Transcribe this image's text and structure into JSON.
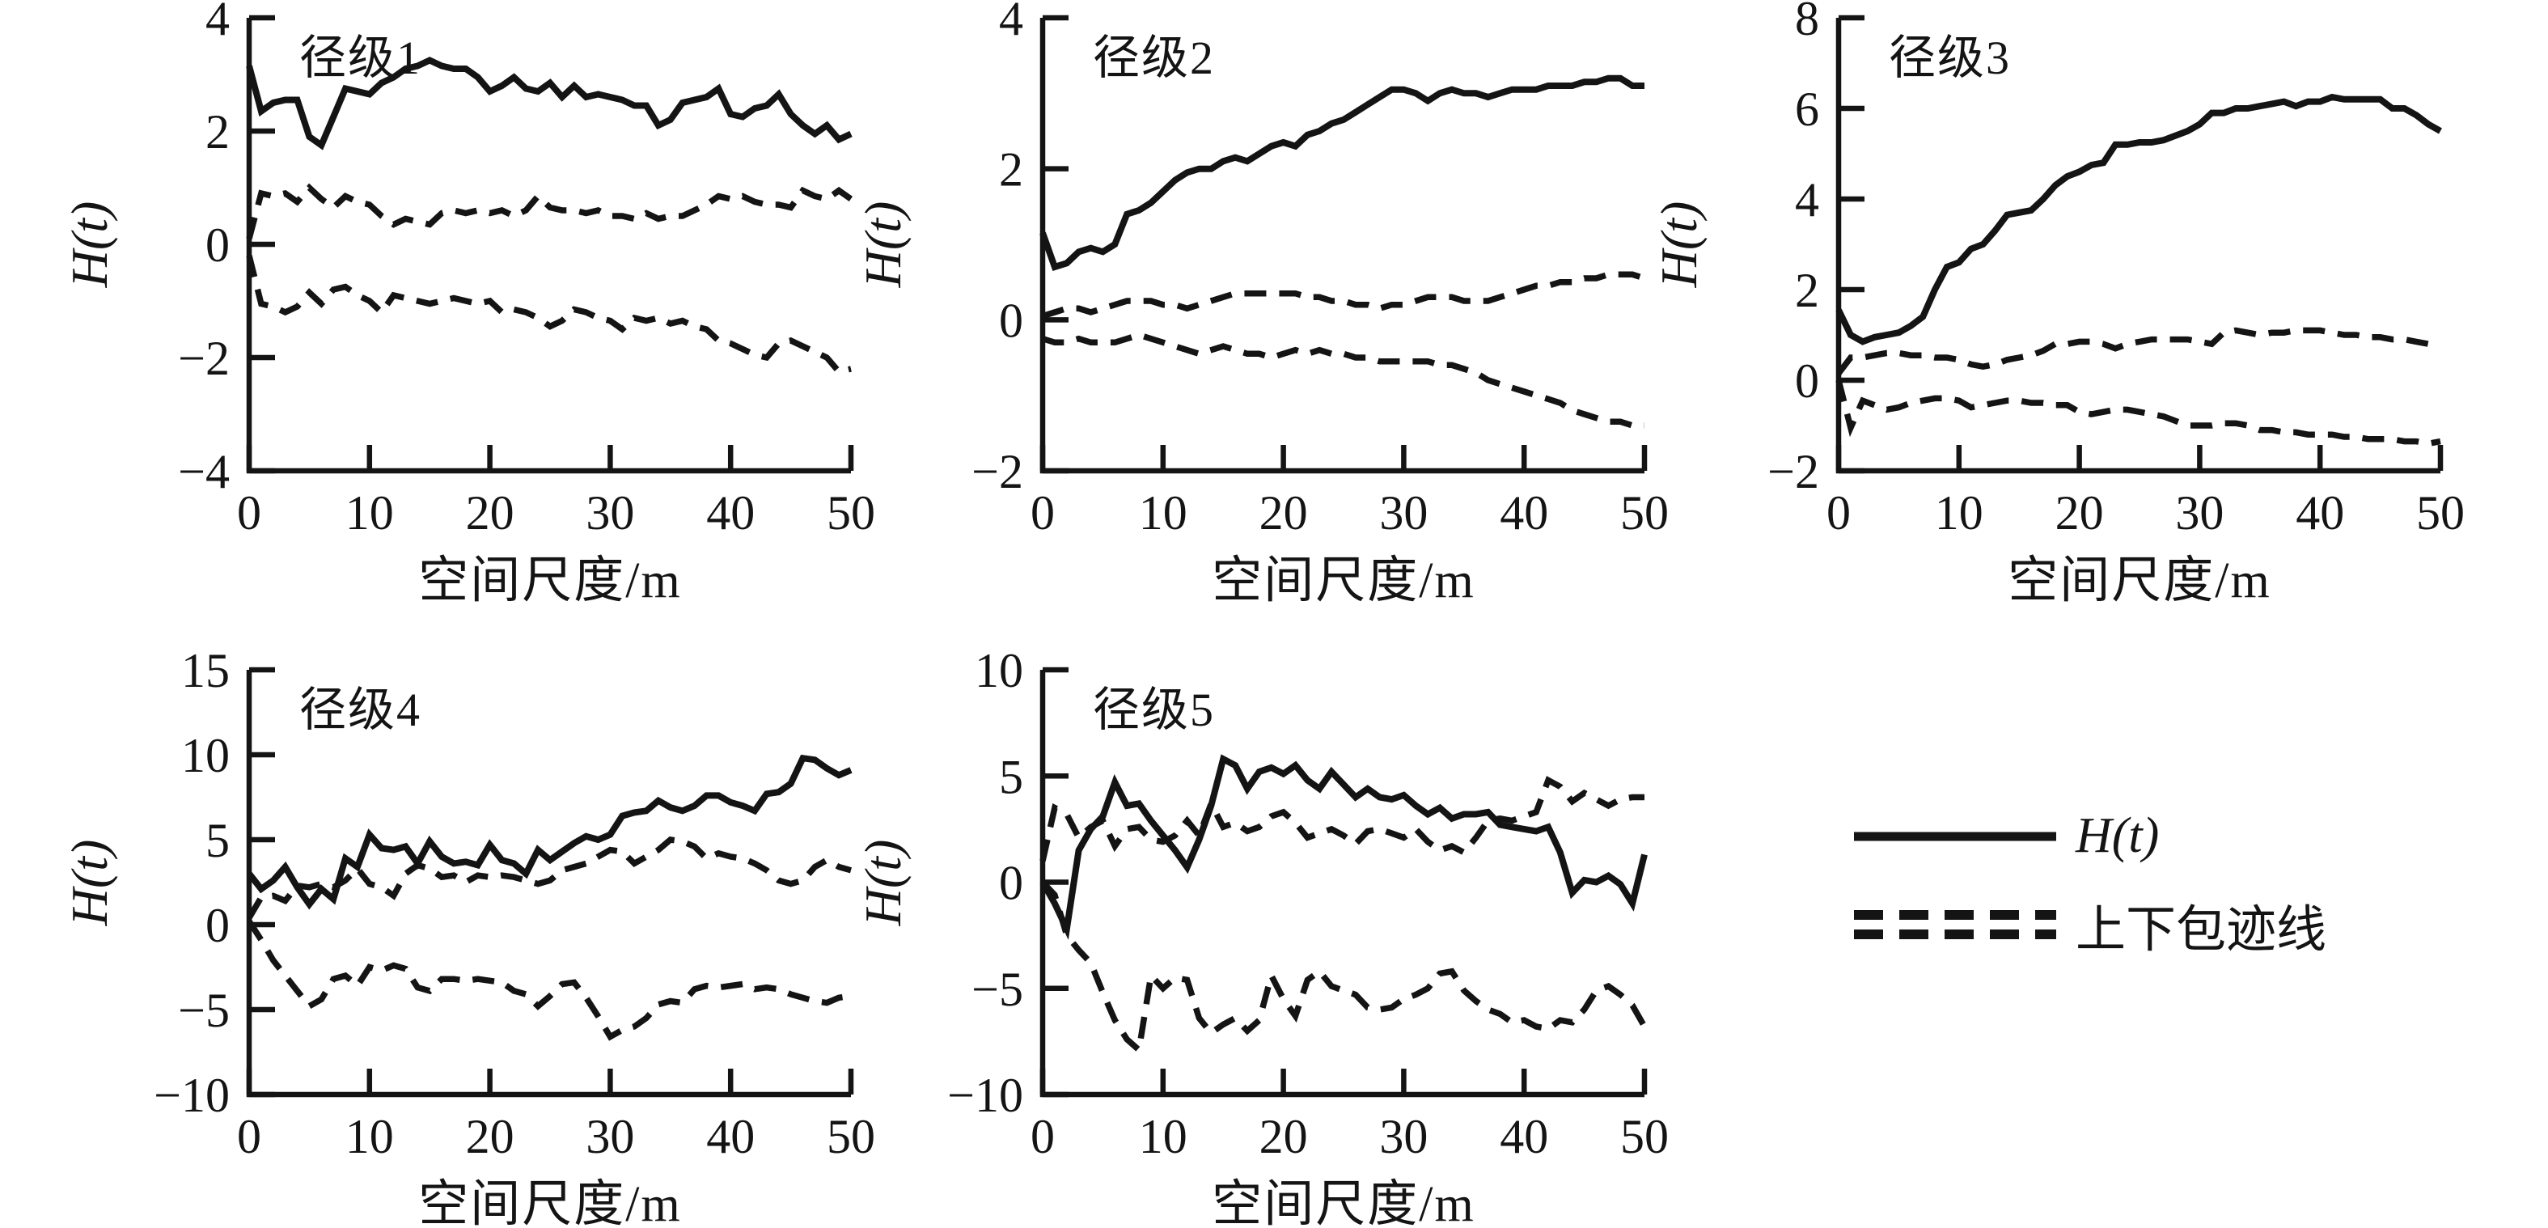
{
  "figure": {
    "background_color": "#ffffff",
    "line_color": "#141414"
  },
  "legend": {
    "items": [
      {
        "label": "H(t)",
        "style": "solid"
      },
      {
        "label": "上下包迹线",
        "style": "double-dashed"
      }
    ]
  },
  "chart_data": [
    {
      "type": "line",
      "title": "径级1",
      "xlabel": "空间尺度/m",
      "ylabel": "H(t)",
      "xlim": [
        0,
        50
      ],
      "ylim": [
        -4,
        4
      ],
      "x_ticks": [
        0,
        10,
        20,
        30,
        40,
        50
      ],
      "y_ticks": [
        4,
        2,
        0,
        -2,
        -4
      ],
      "grid": false,
      "series": [
        {
          "name": "H(t)",
          "style": "solid",
          "values": [
            3.15,
            2.35,
            2.5,
            2.55,
            2.55,
            1.9,
            1.75,
            2.25,
            2.75,
            2.7,
            2.65,
            2.85,
            2.95,
            3.1,
            3.15,
            3.25,
            3.15,
            3.1,
            3.1,
            2.95,
            2.7,
            2.8,
            2.95,
            2.75,
            2.7,
            2.85,
            2.6,
            2.8,
            2.6,
            2.65,
            2.6,
            2.55,
            2.45,
            2.45,
            2.1,
            2.2,
            2.5,
            2.55,
            2.6,
            2.75,
            2.3,
            2.25,
            2.4,
            2.45,
            2.65,
            2.3,
            2.1,
            1.95,
            2.1,
            1.85,
            1.95
          ]
        },
        {
          "name": "envelope_upper",
          "style": "dashed",
          "values": [
            0.1,
            0.9,
            0.85,
            0.9,
            0.75,
            1.0,
            0.8,
            0.65,
            0.85,
            0.75,
            0.7,
            0.5,
            0.35,
            0.45,
            0.4,
            0.35,
            0.55,
            0.6,
            0.55,
            0.6,
            0.55,
            0.6,
            0.5,
            0.6,
            0.85,
            0.65,
            0.6,
            0.6,
            0.55,
            0.6,
            0.5,
            0.5,
            0.45,
            0.55,
            0.45,
            0.5,
            0.5,
            0.6,
            0.7,
            0.85,
            0.8,
            0.85,
            0.75,
            0.7,
            0.7,
            0.65,
            0.95,
            0.85,
            0.8,
            0.95,
            0.8
          ]
        },
        {
          "name": "envelope_lower",
          "style": "dashed",
          "values": [
            -0.2,
            -1.05,
            -1.1,
            -1.2,
            -1.1,
            -0.85,
            -1.05,
            -0.8,
            -0.75,
            -0.9,
            -1.0,
            -1.2,
            -0.9,
            -0.95,
            -1.0,
            -1.05,
            -1.0,
            -0.95,
            -1.0,
            -1.05,
            -1.0,
            -1.2,
            -1.15,
            -1.2,
            -1.3,
            -1.45,
            -1.35,
            -1.15,
            -1.2,
            -1.3,
            -1.35,
            -1.5,
            -1.3,
            -1.35,
            -1.3,
            -1.4,
            -1.35,
            -1.45,
            -1.5,
            -1.7,
            -1.75,
            -1.85,
            -1.95,
            -2.0,
            -1.75,
            -1.7,
            -1.8,
            -1.9,
            -2.0,
            -2.25,
            -2.2
          ]
        }
      ]
    },
    {
      "type": "line",
      "title": "径级2",
      "xlabel": "空间尺度/m",
      "ylabel": "H(t)",
      "xlim": [
        0,
        50
      ],
      "ylim": [
        -2,
        4
      ],
      "x_ticks": [
        0,
        10,
        20,
        30,
        40,
        50
      ],
      "y_ticks": [
        4,
        2,
        0,
        -2
      ],
      "grid": false,
      "series": [
        {
          "name": "H(t)",
          "style": "solid",
          "values": [
            1.15,
            0.7,
            0.75,
            0.9,
            0.95,
            0.9,
            1.0,
            1.4,
            1.45,
            1.55,
            1.7,
            1.85,
            1.95,
            2.0,
            2.0,
            2.1,
            2.15,
            2.1,
            2.2,
            2.3,
            2.35,
            2.3,
            2.45,
            2.5,
            2.6,
            2.65,
            2.75,
            2.85,
            2.95,
            3.05,
            3.05,
            3.0,
            2.9,
            3.0,
            3.05,
            3.0,
            3.0,
            2.95,
            3.0,
            3.05,
            3.05,
            3.05,
            3.1,
            3.1,
            3.1,
            3.15,
            3.15,
            3.2,
            3.2,
            3.1,
            3.1
          ]
        },
        {
          "name": "envelope_upper",
          "style": "dashed",
          "values": [
            0.05,
            0.1,
            0.15,
            0.15,
            0.1,
            0.15,
            0.2,
            0.25,
            0.25,
            0.25,
            0.2,
            0.2,
            0.15,
            0.2,
            0.25,
            0.3,
            0.35,
            0.35,
            0.35,
            0.35,
            0.35,
            0.35,
            0.3,
            0.3,
            0.25,
            0.25,
            0.2,
            0.2,
            0.15,
            0.2,
            0.2,
            0.25,
            0.3,
            0.3,
            0.3,
            0.25,
            0.25,
            0.25,
            0.3,
            0.35,
            0.4,
            0.45,
            0.45,
            0.5,
            0.5,
            0.55,
            0.55,
            0.6,
            0.6,
            0.6,
            0.55
          ]
        },
        {
          "name": "envelope_lower",
          "style": "dashed",
          "values": [
            -0.25,
            -0.3,
            -0.3,
            -0.25,
            -0.3,
            -0.3,
            -0.3,
            -0.25,
            -0.2,
            -0.25,
            -0.3,
            -0.35,
            -0.4,
            -0.45,
            -0.4,
            -0.35,
            -0.4,
            -0.45,
            -0.45,
            -0.5,
            -0.45,
            -0.4,
            -0.45,
            -0.4,
            -0.45,
            -0.45,
            -0.5,
            -0.5,
            -0.55,
            -0.55,
            -0.55,
            -0.55,
            -0.55,
            -0.6,
            -0.6,
            -0.65,
            -0.7,
            -0.8,
            -0.85,
            -0.9,
            -0.95,
            -1.0,
            -1.05,
            -1.1,
            -1.2,
            -1.25,
            -1.3,
            -1.35,
            -1.35,
            -1.4,
            -1.4
          ]
        }
      ]
    },
    {
      "type": "line",
      "title": "径级3",
      "xlabel": "空间尺度/m",
      "ylabel": "H(t)",
      "xlim": [
        0,
        50
      ],
      "ylim": [
        -2,
        8
      ],
      "x_ticks": [
        0,
        10,
        20,
        30,
        40,
        50
      ],
      "y_ticks": [
        8,
        6,
        4,
        2,
        0,
        -2
      ],
      "grid": false,
      "series": [
        {
          "name": "H(t)",
          "style": "solid",
          "values": [
            1.55,
            1.0,
            0.85,
            0.95,
            1.0,
            1.05,
            1.2,
            1.4,
            2.0,
            2.5,
            2.6,
            2.9,
            3.0,
            3.3,
            3.65,
            3.7,
            3.75,
            4.0,
            4.3,
            4.5,
            4.6,
            4.75,
            4.8,
            5.2,
            5.2,
            5.25,
            5.25,
            5.3,
            5.4,
            5.5,
            5.65,
            5.9,
            5.9,
            6.0,
            6.0,
            6.05,
            6.1,
            6.15,
            6.05,
            6.15,
            6.15,
            6.25,
            6.2,
            6.2,
            6.2,
            6.2,
            6.0,
            6.0,
            5.85,
            5.65,
            5.5
          ]
        },
        {
          "name": "envelope_upper",
          "style": "dashed",
          "values": [
            0.15,
            0.5,
            0.5,
            0.55,
            0.6,
            0.6,
            0.55,
            0.55,
            0.5,
            0.5,
            0.45,
            0.35,
            0.3,
            0.35,
            0.45,
            0.5,
            0.55,
            0.65,
            0.8,
            0.8,
            0.85,
            0.85,
            0.8,
            0.7,
            0.8,
            0.85,
            0.9,
            0.9,
            0.9,
            0.9,
            0.85,
            0.8,
            1.05,
            1.1,
            1.05,
            1.0,
            1.05,
            1.05,
            1.1,
            1.1,
            1.1,
            1.05,
            1.0,
            1.0,
            0.95,
            0.95,
            0.9,
            0.9,
            0.85,
            0.8,
            0.75
          ]
        },
        {
          "name": "envelope_lower",
          "style": "dashed",
          "values": [
            0.0,
            -1.05,
            -0.45,
            -0.55,
            -0.65,
            -0.6,
            -0.5,
            -0.45,
            -0.4,
            -0.4,
            -0.45,
            -0.6,
            -0.55,
            -0.5,
            -0.45,
            -0.45,
            -0.5,
            -0.5,
            -0.55,
            -0.55,
            -0.7,
            -0.75,
            -0.7,
            -0.65,
            -0.65,
            -0.7,
            -0.75,
            -0.8,
            -0.9,
            -1.0,
            -1.0,
            -1.0,
            -0.95,
            -0.95,
            -1.0,
            -1.1,
            -1.1,
            -1.15,
            -1.15,
            -1.2,
            -1.2,
            -1.2,
            -1.25,
            -1.25,
            -1.3,
            -1.3,
            -1.3,
            -1.35,
            -1.35,
            -1.4,
            -1.35
          ]
        }
      ]
    },
    {
      "type": "line",
      "title": "径级4",
      "xlabel": "空间尺度/m",
      "ylabel": "H(t)",
      "xlim": [
        0,
        50
      ],
      "ylim": [
        -10,
        15
      ],
      "x_ticks": [
        0,
        10,
        20,
        30,
        40,
        50
      ],
      "y_ticks": [
        15,
        10,
        5,
        0,
        -5,
        -10
      ],
      "grid": false,
      "series": [
        {
          "name": "H(t)",
          "style": "solid",
          "values": [
            3.0,
            2.1,
            2.6,
            3.4,
            2.2,
            1.2,
            2.1,
            1.5,
            3.9,
            3.4,
            5.3,
            4.5,
            4.4,
            4.6,
            3.6,
            4.9,
            4.0,
            3.6,
            3.7,
            3.5,
            4.7,
            3.8,
            3.6,
            3.0,
            4.4,
            3.8,
            4.3,
            4.8,
            5.2,
            5.0,
            5.3,
            6.4,
            6.6,
            6.7,
            7.3,
            6.9,
            6.7,
            7.0,
            7.6,
            7.6,
            7.2,
            7.0,
            6.7,
            7.7,
            7.8,
            8.3,
            9.8,
            9.7,
            9.2,
            8.8,
            9.1
          ]
        },
        {
          "name": "envelope_upper",
          "style": "dashed",
          "values": [
            0.4,
            1.6,
            1.7,
            1.4,
            2.3,
            2.2,
            2.4,
            2.2,
            2.6,
            3.3,
            2.4,
            2.2,
            1.7,
            3.0,
            3.5,
            3.3,
            2.8,
            2.9,
            2.5,
            2.9,
            2.8,
            2.9,
            2.8,
            2.6,
            2.4,
            2.6,
            3.2,
            3.4,
            3.6,
            4.0,
            4.4,
            4.3,
            3.6,
            4.0,
            4.4,
            5.0,
            4.9,
            4.6,
            3.9,
            4.2,
            4.0,
            3.9,
            3.6,
            3.2,
            2.6,
            2.4,
            2.6,
            3.4,
            3.8,
            3.4,
            3.2
          ]
        },
        {
          "name": "envelope_lower",
          "style": "dashed",
          "values": [
            0.2,
            -0.9,
            -2.1,
            -3.0,
            -3.9,
            -4.8,
            -4.4,
            -3.2,
            -3.0,
            -3.6,
            -2.5,
            -2.7,
            -2.4,
            -2.6,
            -3.7,
            -3.9,
            -3.2,
            -3.2,
            -3.3,
            -3.2,
            -3.3,
            -3.4,
            -3.9,
            -4.1,
            -4.8,
            -4.2,
            -3.5,
            -3.4,
            -4.3,
            -5.4,
            -6.6,
            -6.2,
            -6.0,
            -5.5,
            -4.7,
            -4.5,
            -4.6,
            -3.8,
            -3.6,
            -3.7,
            -3.6,
            -3.5,
            -3.8,
            -3.7,
            -3.8,
            -4.1,
            -4.3,
            -4.5,
            -4.6,
            -4.3,
            -4.2
          ]
        }
      ]
    },
    {
      "type": "line",
      "title": "径级5",
      "xlabel": "空间尺度/m",
      "ylabel": "H(t)",
      "xlim": [
        0,
        50
      ],
      "ylim": [
        -10,
        10
      ],
      "x_ticks": [
        0,
        10,
        20,
        30,
        40,
        50
      ],
      "y_ticks": [
        10,
        5,
        0,
        -5,
        -10
      ],
      "grid": false,
      "series": [
        {
          "name": "H(t)",
          "style": "solid",
          "values": [
            0.0,
            -1.0,
            -2.2,
            1.5,
            2.5,
            3.1,
            4.7,
            3.6,
            3.7,
            2.9,
            2.2,
            1.5,
            0.7,
            2.0,
            3.6,
            5.8,
            5.5,
            4.4,
            5.2,
            5.4,
            5.1,
            5.5,
            4.8,
            4.4,
            5.2,
            4.6,
            4.0,
            4.4,
            4.0,
            3.9,
            4.1,
            3.6,
            3.2,
            3.5,
            3.0,
            3.2,
            3.2,
            3.3,
            2.7,
            2.6,
            2.5,
            2.4,
            2.6,
            1.4,
            -0.5,
            0.1,
            0.0,
            0.3,
            -0.1,
            -1.0,
            1.3
          ]
        },
        {
          "name": "envelope_upper",
          "style": "dashed",
          "values": [
            1.0,
            3.5,
            3.2,
            2.1,
            2.6,
            2.9,
            1.7,
            2.5,
            2.6,
            2.0,
            1.9,
            2.2,
            2.9,
            2.2,
            3.7,
            2.6,
            2.8,
            2.4,
            2.6,
            3.1,
            3.3,
            2.8,
            2.1,
            2.3,
            2.5,
            2.2,
            1.8,
            2.4,
            2.5,
            2.3,
            2.1,
            2.5,
            1.9,
            1.5,
            1.7,
            1.4,
            2.1,
            2.9,
            3.0,
            2.9,
            3.1,
            3.3,
            4.8,
            4.5,
            3.8,
            4.2,
            3.9,
            3.6,
            3.9,
            4.0,
            4.0
          ]
        },
        {
          "name": "envelope_lower",
          "style": "dashed",
          "values": [
            0.0,
            -0.6,
            -2.5,
            -3.2,
            -3.8,
            -5.2,
            -6.5,
            -7.4,
            -7.9,
            -4.4,
            -5.0,
            -4.5,
            -4.6,
            -6.4,
            -7.1,
            -6.7,
            -6.4,
            -7.0,
            -6.5,
            -4.4,
            -5.5,
            -6.3,
            -4.6,
            -4.2,
            -4.9,
            -5.1,
            -5.3,
            -5.9,
            -6.0,
            -5.9,
            -5.5,
            -5.3,
            -5.0,
            -4.3,
            -4.2,
            -5.1,
            -5.6,
            -6.0,
            -6.2,
            -6.6,
            -6.5,
            -6.8,
            -6.9,
            -6.5,
            -6.6,
            -6.0,
            -5.1,
            -4.9,
            -5.3,
            -5.8,
            -6.8
          ]
        }
      ]
    }
  ]
}
